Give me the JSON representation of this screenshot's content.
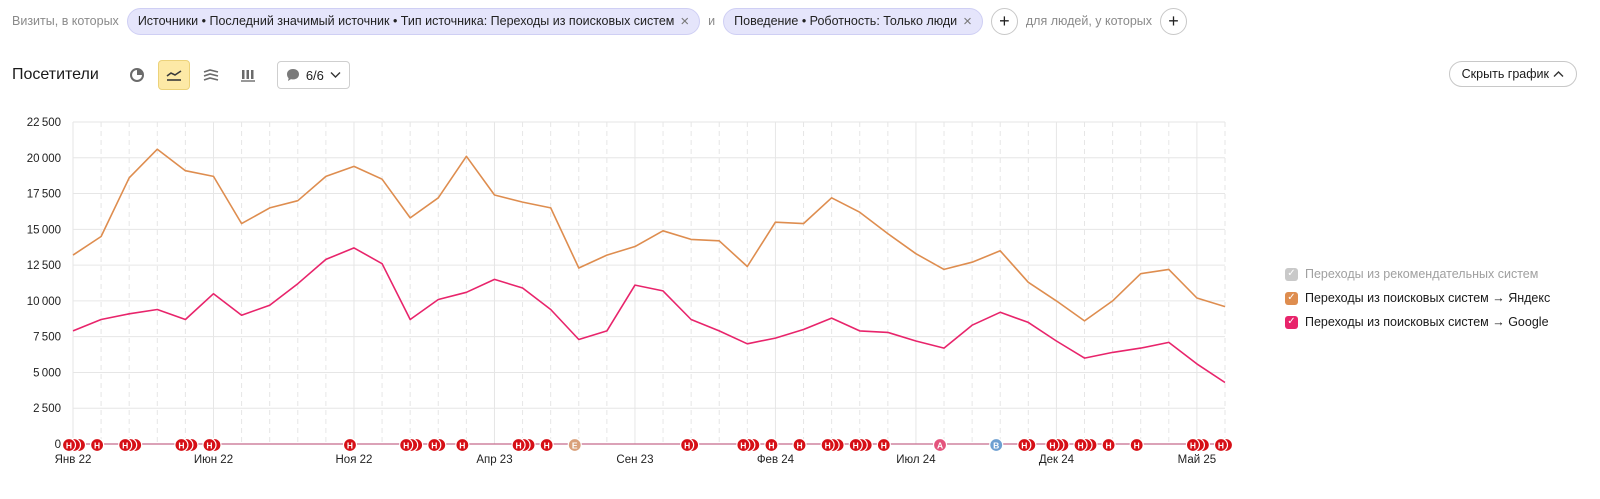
{
  "filters": {
    "prefix": "Визиты, в которых",
    "chip1": "Источники • Последний значимый источник • Тип источника: Переходы из поисковых систем",
    "connector": "и",
    "chip2": "Поведение • Роботность: Только люди",
    "people_label": "для людей, у которых"
  },
  "toolbar": {
    "title": "Посетители",
    "annotations_count": "6/6",
    "hide_chart": "Скрыть график"
  },
  "colors": {
    "yandex": "#de8d4f",
    "google": "#e8246b",
    "recommend": "#c9c9c9",
    "grid": "#e6e6e6",
    "marker_red": "#d60f16",
    "marker_orange": "#d9a07a",
    "marker_pink": "#e4537c",
    "marker_blue": "#6d9fd1"
  },
  "legend": [
    {
      "label": "Переходы из рекомендательных систем",
      "color": "#c9c9c9",
      "checked": true,
      "disabled": true
    },
    {
      "label": "Переходы из поисковых систем → Яндекс",
      "color": "#de8d4f",
      "checked": true,
      "disabled": false
    },
    {
      "label": "Переходы из поисковых систем → Google",
      "color": "#e8246b",
      "checked": true,
      "disabled": false
    }
  ],
  "chart_data": {
    "type": "line",
    "y_ticks": [
      0,
      2500,
      5000,
      7500,
      10000,
      12500,
      15000,
      17500,
      20000,
      22500
    ],
    "ylim": [
      0,
      22500
    ],
    "x_tick_labels": [
      {
        "label": "Янв 22",
        "index": 0
      },
      {
        "label": "Июн 22",
        "index": 5
      },
      {
        "label": "Ноя 22",
        "index": 10
      },
      {
        "label": "Апр 23",
        "index": 15
      },
      {
        "label": "Сен 23",
        "index": 20
      },
      {
        "label": "Фев 24",
        "index": 25
      },
      {
        "label": "Июл 24",
        "index": 30
      },
      {
        "label": "Дек 24",
        "index": 35
      },
      {
        "label": "Май 25",
        "index": 40
      }
    ],
    "x": [
      "2022-01",
      "2022-02",
      "2022-03",
      "2022-04",
      "2022-05",
      "2022-06",
      "2022-07",
      "2022-08",
      "2022-09",
      "2022-10",
      "2022-11",
      "2022-12",
      "2023-01",
      "2023-02",
      "2023-03",
      "2023-04",
      "2023-05",
      "2023-06",
      "2023-07",
      "2023-08",
      "2023-09",
      "2023-10",
      "2023-11",
      "2023-12",
      "2024-01",
      "2024-02",
      "2024-03",
      "2024-04",
      "2024-05",
      "2024-06",
      "2024-07",
      "2024-08",
      "2024-09",
      "2024-10",
      "2024-11",
      "2024-12",
      "2025-01",
      "2025-02",
      "2025-03",
      "2025-04",
      "2025-05",
      "2025-06"
    ],
    "series": [
      {
        "name": "Переходы из поисковых систем → Яндекс",
        "color": "#de8d4f",
        "values": [
          13200,
          14500,
          18600,
          20600,
          19100,
          18700,
          15400,
          16500,
          17000,
          18700,
          19400,
          18500,
          15800,
          17200,
          20100,
          17400,
          16900,
          16500,
          12300,
          13200,
          13800,
          14900,
          14300,
          14200,
          12400,
          15500,
          15400,
          17200,
          16200,
          14700,
          13300,
          12200,
          12700,
          13500,
          11300,
          10000,
          8600,
          10000,
          11900,
          12200,
          10200,
          9600
        ]
      },
      {
        "name": "Переходы из поисковых систем → Google",
        "color": "#e8246b",
        "values": [
          7900,
          8700,
          9100,
          9400,
          8700,
          10500,
          9000,
          9700,
          11200,
          12900,
          13700,
          12600,
          8700,
          10100,
          10600,
          11500,
          10900,
          9400,
          7300,
          7900,
          11100,
          10700,
          8700,
          7900,
          7000,
          7400,
          8000,
          8800,
          7900,
          7800,
          7200,
          6700,
          8300,
          9200,
          8500,
          7200,
          6000,
          6400,
          6700,
          7100,
          5600,
          4300
        ]
      }
    ],
    "markers": [
      {
        "index": 0,
        "letter": "Н",
        "kind": "red",
        "count": 3
      },
      {
        "index": 1,
        "letter": "Н",
        "kind": "red",
        "count": 1
      },
      {
        "index": 2,
        "letter": "Н",
        "kind": "red",
        "count": 3
      },
      {
        "index": 4,
        "letter": "Н",
        "kind": "red",
        "count": 3
      },
      {
        "index": 5,
        "letter": "Н",
        "kind": "red",
        "count": 2
      },
      {
        "index": 10,
        "letter": "Н",
        "kind": "red",
        "count": 1
      },
      {
        "index": 12,
        "letter": "Н",
        "kind": "red",
        "count": 3
      },
      {
        "index": 13,
        "letter": "Н",
        "kind": "red",
        "count": 2
      },
      {
        "index": 14,
        "letter": "Н",
        "kind": "red",
        "count": 1
      },
      {
        "index": 16,
        "letter": "Н",
        "kind": "red",
        "count": 3
      },
      {
        "index": 17,
        "letter": "Н",
        "kind": "red",
        "count": 1
      },
      {
        "index": 18,
        "letter": "Е",
        "kind": "orange",
        "count": 1
      },
      {
        "index": 22,
        "letter": "Н",
        "kind": "red",
        "count": 2
      },
      {
        "index": 24,
        "letter": "Н",
        "kind": "red",
        "count": 3
      },
      {
        "index": 25,
        "letter": "Н",
        "kind": "red",
        "count": 1
      },
      {
        "index": 26,
        "letter": "Н",
        "kind": "red",
        "count": 1
      },
      {
        "index": 27,
        "letter": "Н",
        "kind": "red",
        "count": 3
      },
      {
        "index": 28,
        "letter": "Н",
        "kind": "red",
        "count": 3
      },
      {
        "index": 29,
        "letter": "Н",
        "kind": "red",
        "count": 1
      },
      {
        "index": 31,
        "letter": "А",
        "kind": "pink",
        "count": 1
      },
      {
        "index": 33,
        "letter": "В",
        "kind": "blue",
        "count": 1
      },
      {
        "index": 34,
        "letter": "Н",
        "kind": "red",
        "count": 2
      },
      {
        "index": 35,
        "letter": "Н",
        "kind": "red",
        "count": 3
      },
      {
        "index": 36,
        "letter": "Н",
        "kind": "red",
        "count": 3
      },
      {
        "index": 37,
        "letter": "Н",
        "kind": "red",
        "count": 1
      },
      {
        "index": 38,
        "letter": "Н",
        "kind": "red",
        "count": 1
      },
      {
        "index": 40,
        "letter": "Н",
        "kind": "red",
        "count": 3
      },
      {
        "index": 41,
        "letter": "Н",
        "kind": "red",
        "count": 2
      }
    ],
    "grid": true,
    "legend_position": "right"
  }
}
